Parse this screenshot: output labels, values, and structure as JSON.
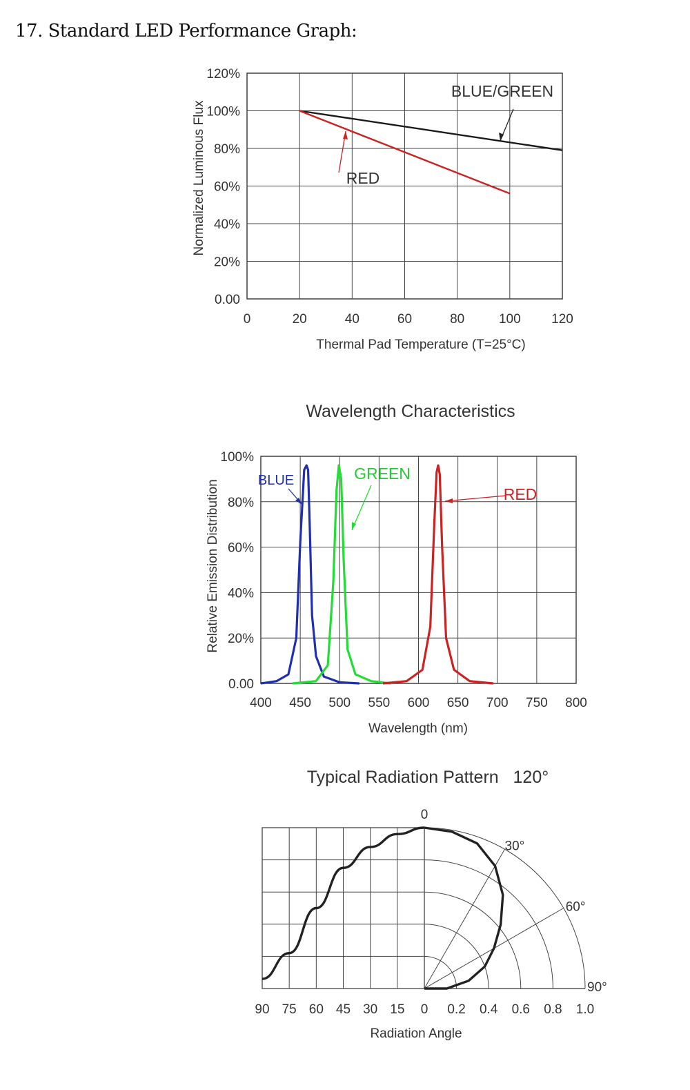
{
  "page": {
    "heading": "17. Standard LED Performance Graph:"
  },
  "chart_data": [
    {
      "type": "line",
      "xlabel": "Thermal Pad Temperature (T=25°C)",
      "ylabel": "Normalized Luminous Flux",
      "xticks": [
        "0",
        "20",
        "40",
        "60",
        "80",
        "100",
        "120"
      ],
      "yticks": [
        "0.00",
        "20%",
        "40%",
        "60%",
        "80%",
        "100%",
        "120%"
      ],
      "xlim": [
        0,
        120
      ],
      "ylim": [
        0,
        120
      ],
      "grid": true,
      "series": [
        {
          "name": "BLUE/GREEN",
          "color": "#1a1a1a",
          "x": [
            20,
            120
          ],
          "y": [
            100,
            79
          ]
        },
        {
          "name": "RED",
          "color": "#cc2222",
          "x": [
            20,
            100
          ],
          "y": [
            100,
            56
          ]
        }
      ]
    },
    {
      "type": "line",
      "title": "Wavelength Characteristics",
      "xlabel": "Wavelength (nm)",
      "ylabel": "Relative Emission Distribution",
      "xticks": [
        "400",
        "450",
        "500",
        "550",
        "600",
        "650",
        "700",
        "750",
        "800"
      ],
      "yticks": [
        "0.00",
        "20%",
        "40%",
        "60%",
        "80%",
        "100%"
      ],
      "xlim": [
        400,
        800
      ],
      "ylim": [
        0,
        100
      ],
      "grid": true,
      "series": [
        {
          "name": "BLUE",
          "color": "#1f2fb0",
          "x": [
            400,
            420,
            435,
            445,
            450,
            455,
            458,
            460,
            462,
            465,
            470,
            480,
            500,
            525
          ],
          "y": [
            0,
            1,
            4,
            20,
            62,
            94,
            96,
            94,
            70,
            30,
            12,
            3,
            0.5,
            0
          ]
        },
        {
          "name": "GREEN",
          "color": "#22dd33",
          "x": [
            440,
            470,
            485,
            492,
            496,
            499,
            502,
            505,
            510,
            520,
            540,
            565
          ],
          "y": [
            0,
            1,
            8,
            45,
            85,
            96,
            90,
            55,
            15,
            4,
            1,
            0
          ]
        },
        {
          "name": "RED",
          "color": "#cc2222",
          "x": [
            555,
            585,
            605,
            615,
            620,
            623,
            625,
            627,
            630,
            635,
            645,
            665,
            695
          ],
          "y": [
            0,
            1,
            6,
            25,
            70,
            93,
            96,
            92,
            60,
            20,
            6,
            1,
            0
          ]
        }
      ]
    },
    {
      "type": "line",
      "title": "Typical Radiation Pattern   120°",
      "xlabel": "Radiation Angle",
      "angle_ticks": [
        "90",
        "75",
        "60",
        "45",
        "30",
        "15",
        "0"
      ],
      "intensity_ticks": [
        "0.2",
        "0.4",
        "0.6",
        "0.8",
        "1.0"
      ],
      "polar_labels": [
        "0",
        "30°",
        "60°",
        "90°"
      ],
      "grid": true,
      "series": [
        {
          "name": "",
          "color": "#222222",
          "angle_deg": [
            0,
            10,
            20,
            30,
            40,
            50,
            60,
            70,
            80,
            90
          ],
          "intensity": [
            1.0,
            0.99,
            0.96,
            0.88,
            0.76,
            0.62,
            0.5,
            0.4,
            0.28,
            0.14
          ],
          "angle_profile_deg": [
            0,
            15,
            30,
            45,
            60,
            75,
            90
          ],
          "intensity_profile": [
            1.0,
            0.96,
            0.88,
            0.75,
            0.5,
            0.22,
            0.06
          ]
        }
      ]
    }
  ]
}
